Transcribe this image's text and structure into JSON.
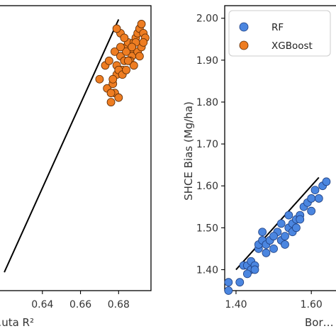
{
  "chart_data": [
    {
      "id": "left",
      "type": "scatter",
      "xlabel": "…uta R²",
      "ylabel": "",
      "xlim": [
        0.617,
        0.697
      ],
      "ylim": [
        1.16,
        1.78
      ],
      "xticks": [
        0.64,
        0.66,
        0.68
      ],
      "xtick_labels": [
        "0.64",
        "0.66",
        "0.68"
      ],
      "yticks": [],
      "ytick_labels": [],
      "reference_line": {
        "x": [
          0.62,
          0.68
        ],
        "y": [
          1.2,
          1.75
        ]
      },
      "series": [
        {
          "name": "XGBoost",
          "color": "#ee7d22",
          "x": [
            0.67,
            0.673,
            0.674,
            0.676,
            0.677,
            0.678,
            0.679,
            0.68,
            0.675,
            0.678,
            0.681,
            0.682,
            0.683,
            0.684,
            0.685,
            0.681,
            0.683,
            0.686,
            0.687,
            0.688,
            0.689,
            0.69,
            0.691,
            0.692,
            0.693,
            0.694,
            0.686,
            0.688,
            0.69,
            0.691,
            0.692,
            0.689,
            0.684,
            0.679,
            0.677,
            0.676,
            0.681,
            0.685,
            0.693,
            0.68,
            0.682,
            0.687,
            0.679,
            0.684
          ],
          "y": [
            1.62,
            1.65,
            1.6,
            1.57,
            1.61,
            1.59,
            1.63,
            1.58,
            1.66,
            1.68,
            1.67,
            1.64,
            1.66,
            1.69,
            1.7,
            1.72,
            1.71,
            1.68,
            1.67,
            1.7,
            1.71,
            1.72,
            1.73,
            1.74,
            1.72,
            1.71,
            1.66,
            1.65,
            1.68,
            1.67,
            1.69,
            1.7,
            1.68,
            1.65,
            1.62,
            1.59,
            1.69,
            1.66,
            1.7,
            1.64,
            1.63,
            1.69,
            1.73,
            1.64
          ]
        }
      ]
    },
    {
      "id": "right",
      "type": "scatter",
      "xlabel": "Bor…",
      "ylabel": "SHCE Bias (Mg/ha)",
      "xlim": [
        1.37,
        1.69
      ],
      "ylim": [
        1.35,
        2.03
      ],
      "xticks": [
        1.4,
        1.6
      ],
      "xtick_labels": [
        "1.40",
        "1.60"
      ],
      "yticks": [
        1.4,
        1.5,
        1.6,
        1.7,
        1.8,
        1.9,
        2.0
      ],
      "ytick_labels": [
        "1.40",
        "1.50",
        "1.60",
        "1.70",
        "1.80",
        "1.90",
        "2.00"
      ],
      "reference_line": {
        "x": [
          1.4,
          1.62
        ],
        "y": [
          1.4,
          1.62
        ]
      },
      "legend": {
        "placement": "top-left"
      },
      "series": [
        {
          "name": "RF",
          "color": "#4b86e0",
          "x": [
            1.38,
            1.38,
            1.41,
            1.42,
            1.43,
            1.44,
            1.44,
            1.45,
            1.45,
            1.46,
            1.46,
            1.47,
            1.48,
            1.48,
            1.49,
            1.5,
            1.51,
            1.52,
            1.53,
            1.53,
            1.54,
            1.55,
            1.55,
            1.56,
            1.56,
            1.57,
            1.58,
            1.59,
            1.6,
            1.61,
            1.62,
            1.63,
            1.64,
            1.47,
            1.52,
            1.57,
            1.6,
            1.43,
            1.5,
            1.54
          ],
          "y": [
            1.37,
            1.35,
            1.37,
            1.41,
            1.41,
            1.42,
            1.4,
            1.41,
            1.4,
            1.45,
            1.46,
            1.47,
            1.46,
            1.44,
            1.47,
            1.45,
            1.49,
            1.47,
            1.48,
            1.46,
            1.5,
            1.49,
            1.51,
            1.5,
            1.52,
            1.53,
            1.55,
            1.56,
            1.57,
            1.59,
            1.57,
            1.6,
            1.61,
            1.49,
            1.51,
            1.52,
            1.54,
            1.39,
            1.48,
            1.53
          ]
        },
        {
          "name": "XGBoost",
          "color": "#ee7d22",
          "x": [],
          "y": []
        }
      ]
    }
  ]
}
